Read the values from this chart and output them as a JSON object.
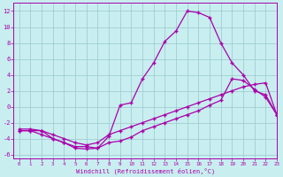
{
  "line1_x": [
    0,
    1,
    2,
    3,
    4,
    5,
    6,
    7,
    8,
    9,
    10,
    11,
    12,
    13,
    14,
    15,
    16,
    17,
    18,
    19,
    20,
    21,
    22,
    23
  ],
  "line1_y": [
    -3,
    -3,
    -3,
    -4,
    -4.5,
    -5,
    -5,
    -5.2,
    -3.7,
    0.2,
    0.5,
    3.5,
    5.5,
    8.2,
    9.5,
    12,
    11.8,
    11.2,
    8,
    5.5,
    4,
    2,
    1.5,
    -1
  ],
  "line2_x": [
    0,
    1,
    2,
    3,
    4,
    5,
    6,
    7,
    8,
    9,
    10,
    11,
    12,
    13,
    14,
    15,
    16,
    17,
    18,
    19,
    20,
    21,
    22,
    23
  ],
  "line2_y": [
    -3,
    -3,
    -3.5,
    -4,
    -4.5,
    -5.2,
    -5.3,
    -5.2,
    -4.5,
    -4.3,
    -3.8,
    -3.0,
    -2.5,
    -2.0,
    -1.5,
    -1.0,
    -0.5,
    0.2,
    0.8,
    3.5,
    3.3,
    2.2,
    1.2,
    -1
  ],
  "line3_x": [
    0,
    1,
    2,
    3,
    4,
    5,
    6,
    7,
    8,
    9,
    10,
    11,
    12,
    13,
    14,
    15,
    16,
    17,
    18,
    19,
    20,
    21,
    22,
    23
  ],
  "line3_y": [
    -2.8,
    -2.8,
    -3.0,
    -3.5,
    -4.0,
    -4.5,
    -4.8,
    -4.5,
    -3.5,
    -3.0,
    -2.5,
    -2.0,
    -1.5,
    -1.0,
    -0.5,
    0.0,
    0.5,
    1.0,
    1.5,
    2.0,
    2.5,
    2.8,
    3.0,
    -1
  ],
  "line_color": "#aa00aa",
  "marker": "+",
  "bg_color": "#c8eef0",
  "grid_color": "#9ac8cc",
  "xlabel": "Windchill (Refroidissement éolien,°C)",
  "xlim": [
    -0.5,
    23
  ],
  "ylim": [
    -6.5,
    13
  ],
  "xtick_values": [
    0,
    1,
    2,
    3,
    4,
    5,
    6,
    7,
    8,
    9,
    10,
    11,
    12,
    13,
    14,
    15,
    16,
    17,
    18,
    19,
    20,
    21,
    22,
    23
  ],
  "xtick_labels": [
    "0",
    "1",
    "2",
    "3",
    "4",
    "5",
    "6",
    "7",
    "8",
    "9",
    "10",
    "11",
    "12",
    "13",
    "14",
    "15",
    "16",
    "17",
    "18",
    "19",
    "20",
    "21",
    "22",
    "23"
  ],
  "ytick_values": [
    -6,
    -4,
    -2,
    0,
    2,
    4,
    6,
    8,
    10,
    12
  ],
  "line_color_hex": "#aa00aa",
  "tick_color": "#aa00aa",
  "label_color": "#aa00aa",
  "axis_color": "#aa00aa",
  "markersize": 3,
  "linewidth": 0.9
}
